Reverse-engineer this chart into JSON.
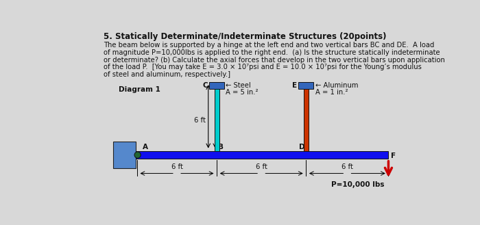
{
  "title": "5. Statically Determinate/Indeterminate Structures (20points)",
  "body_text": [
    "The beam below is supported by a hinge at the left end and two vertical bars BC and DE.  A load",
    "of magnitude P=10,000lbs is applied to the right end.  (a) Is the structure statically indeterminate",
    "or determinate? (b) Calculate the axial forces that develop in the two vertical bars upon application",
    "of the load P.  [You may take E = 3.0 × 10⁷psi and E = 10.0 × 10⁷psi for the Young’s modulus",
    "of steel and aluminum, respectively.]"
  ],
  "diagram_label": "Diagram 1",
  "label_A": "A",
  "label_B": "B",
  "label_C": "C",
  "label_D": "D",
  "label_E": "E",
  "label_F": "F",
  "steel_label": "← Steel",
  "aluminum_label": "← Aluminum",
  "steel_area": "A = 5 in.²",
  "aluminum_area": "A = 1 in.²",
  "dim_6ft": "6 ft",
  "load_label": "P=10,000 lbs",
  "beam_color": "#1010ee",
  "wall_color": "#5588cc",
  "steel_bar_color": "#00cccc",
  "aluminum_bar_color": "#cc3300",
  "steel_cap_color": "#3366bb",
  "aluminum_cap_color": "#3366bb",
  "hinge_color": "#226633",
  "arrow_color": "#cc0000",
  "background": "#d8d8d8",
  "text_color": "#111111"
}
